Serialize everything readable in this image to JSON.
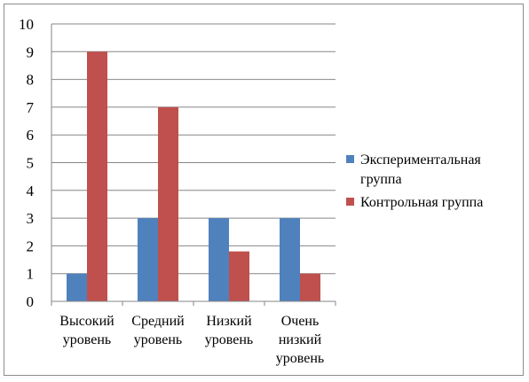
{
  "chart_data": {
    "type": "bar",
    "title": "",
    "xlabel": "",
    "ylabel": "",
    "ylim": [
      0,
      10
    ],
    "yticks": [
      0,
      1,
      2,
      3,
      4,
      5,
      6,
      7,
      8,
      9,
      10
    ],
    "grid": true,
    "legend_position": "right",
    "categories": [
      [
        "Высокий",
        "уровень"
      ],
      [
        "Средний",
        "уровень"
      ],
      [
        "Низкий",
        "уровень"
      ],
      [
        "Очень",
        "низкий",
        "уровень"
      ]
    ],
    "series": [
      {
        "name": [
          "Экспериментальная",
          "группа"
        ],
        "color": "#4f81bd",
        "values": [
          1,
          3,
          3,
          3
        ]
      },
      {
        "name": [
          "Контрольная группа"
        ],
        "color": "#c0504d",
        "values": [
          9,
          7,
          1.8,
          1
        ]
      }
    ]
  }
}
